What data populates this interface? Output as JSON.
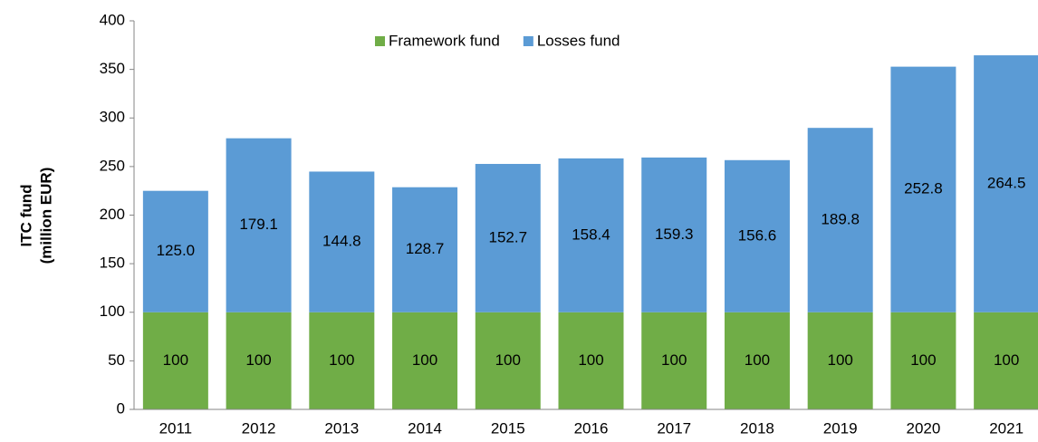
{
  "chart_data": {
    "type": "stacked_bar",
    "categories": [
      "2011",
      "2012",
      "2013",
      "2014",
      "2015",
      "2016",
      "2017",
      "2018",
      "2019",
      "2020",
      "2021"
    ],
    "series": [
      {
        "name": "Framework fund",
        "color": "#70ad47",
        "values": [
          100,
          100,
          100,
          100,
          100,
          100,
          100,
          100,
          100,
          100,
          100
        ]
      },
      {
        "name": "Losses fund",
        "color": "#5b9bd5",
        "values": [
          125.0,
          179.1,
          144.8,
          128.7,
          152.7,
          158.4,
          159.3,
          156.6,
          189.8,
          252.8,
          264.5
        ],
        "value_labels": [
          "125.0",
          "179.1",
          "144.8",
          "128.7",
          "152.7",
          "158.4",
          "159.3",
          "156.6",
          "189.8",
          "252.8",
          "264.5"
        ]
      }
    ],
    "ylabel": [
      "ITC fund",
      "(million EUR)"
    ],
    "ylim": [
      0,
      400
    ],
    "yticks": [
      0,
      50,
      100,
      150,
      200,
      250,
      300,
      350,
      400
    ],
    "grid": false,
    "legend": "top"
  }
}
